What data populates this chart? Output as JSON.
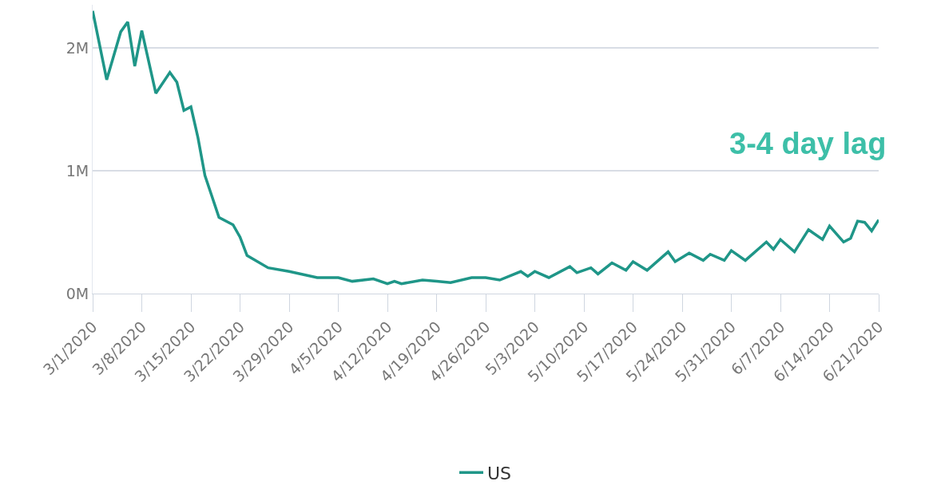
{
  "chart_data": {
    "type": "line",
    "annotations": [
      "3-4 day lag"
    ],
    "x": [
      "2020-03-01",
      "2020-03-03",
      "2020-03-05",
      "2020-03-06",
      "2020-03-07",
      "2020-03-08",
      "2020-03-10",
      "2020-03-12",
      "2020-03-13",
      "2020-03-14",
      "2020-03-15",
      "2020-03-16",
      "2020-03-17",
      "2020-03-18",
      "2020-03-19",
      "2020-03-21",
      "2020-03-22",
      "2020-03-23",
      "2020-03-26",
      "2020-03-29",
      "2020-04-02",
      "2020-04-05",
      "2020-04-07",
      "2020-04-10",
      "2020-04-12",
      "2020-04-13",
      "2020-04-14",
      "2020-04-17",
      "2020-04-19",
      "2020-04-21",
      "2020-04-24",
      "2020-04-26",
      "2020-04-28",
      "2020-05-01",
      "2020-05-02",
      "2020-05-03",
      "2020-05-05",
      "2020-05-08",
      "2020-05-09",
      "2020-05-11",
      "2020-05-12",
      "2020-05-14",
      "2020-05-16",
      "2020-05-17",
      "2020-05-19",
      "2020-05-22",
      "2020-05-23",
      "2020-05-25",
      "2020-05-27",
      "2020-05-28",
      "2020-05-30",
      "2020-05-31",
      "2020-06-02",
      "2020-06-05",
      "2020-06-06",
      "2020-06-07",
      "2020-06-09",
      "2020-06-11",
      "2020-06-13",
      "2020-06-14",
      "2020-06-16",
      "2020-06-17",
      "2020-06-18",
      "2020-06-19",
      "2020-06-20",
      "2020-06-21"
    ],
    "series": [
      {
        "name": "US",
        "color": "#1f9688",
        "values": [
          2300000,
          1740000,
          2130000,
          2210000,
          1850000,
          2140000,
          1630000,
          1800000,
          1720000,
          1490000,
          1520000,
          1270000,
          960000,
          790000,
          620000,
          560000,
          460000,
          310000,
          210000,
          180000,
          130000,
          130000,
          100000,
          120000,
          80000,
          100000,
          80000,
          110000,
          100000,
          90000,
          130000,
          130000,
          110000,
          180000,
          140000,
          180000,
          130000,
          220000,
          170000,
          210000,
          160000,
          250000,
          190000,
          260000,
          190000,
          340000,
          260000,
          330000,
          270000,
          320000,
          270000,
          350000,
          270000,
          420000,
          360000,
          440000,
          340000,
          520000,
          440000,
          550000,
          420000,
          450000,
          590000,
          580000,
          510000,
          600000
        ]
      }
    ],
    "xlim": [
      "2020-03-01",
      "2020-06-21"
    ],
    "xticks": [
      {
        "value": "2020-03-01",
        "label": "3/1/2020"
      },
      {
        "value": "2020-03-08",
        "label": "3/8/2020"
      },
      {
        "value": "2020-03-15",
        "label": "3/15/2020"
      },
      {
        "value": "2020-03-22",
        "label": "3/22/2020"
      },
      {
        "value": "2020-03-29",
        "label": "3/29/2020"
      },
      {
        "value": "2020-04-05",
        "label": "4/5/2020"
      },
      {
        "value": "2020-04-12",
        "label": "4/12/2020"
      },
      {
        "value": "2020-04-19",
        "label": "4/19/2020"
      },
      {
        "value": "2020-04-26",
        "label": "4/26/2020"
      },
      {
        "value": "2020-05-03",
        "label": "5/3/2020"
      },
      {
        "value": "2020-05-10",
        "label": "5/10/2020"
      },
      {
        "value": "2020-05-17",
        "label": "5/17/2020"
      },
      {
        "value": "2020-05-24",
        "label": "5/24/2020"
      },
      {
        "value": "2020-05-31",
        "label": "5/31/2020"
      },
      {
        "value": "2020-06-07",
        "label": "6/7/2020"
      },
      {
        "value": "2020-06-14",
        "label": "6/14/2020"
      },
      {
        "value": "2020-06-21",
        "label": "6/21/2020"
      }
    ],
    "ylim": [
      0,
      2350000
    ],
    "yticks": [
      {
        "value": 0,
        "label": "0M"
      },
      {
        "value": 1000000,
        "label": "1M"
      },
      {
        "value": 2000000,
        "label": "2M"
      }
    ],
    "grid": "y",
    "legend": "bottom",
    "marker": "none",
    "line_style": "solid"
  }
}
